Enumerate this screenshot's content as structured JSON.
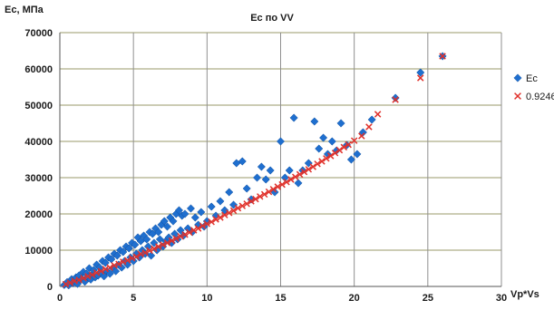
{
  "chart_data": {
    "type": "scatter",
    "title": "Ec по VV",
    "ylabel": "Ec, МПа",
    "xlabel": "Vp*Vs",
    "xlim": [
      0,
      30
    ],
    "ylim": [
      0,
      70000
    ],
    "x_ticks": [
      "0",
      "5",
      "10",
      "15",
      "20",
      "25",
      "30"
    ],
    "y_ticks": [
      "0",
      "10000",
      "20000",
      "30000",
      "40000",
      "50000",
      "60000",
      "70000"
    ],
    "grid": true,
    "legend_position": "right",
    "series": [
      {
        "name": "Ec",
        "marker": "diamond",
        "color": "#1f6fcf",
        "points": [
          [
            0.3,
            400
          ],
          [
            0.5,
            1200
          ],
          [
            0.6,
            300
          ],
          [
            0.8,
            2000
          ],
          [
            0.9,
            900
          ],
          [
            1.0,
            1500
          ],
          [
            1.1,
            2500
          ],
          [
            1.2,
            700
          ],
          [
            1.3,
            3000
          ],
          [
            1.4,
            1800
          ],
          [
            1.5,
            2200
          ],
          [
            1.6,
            4000
          ],
          [
            1.7,
            1300
          ],
          [
            1.8,
            3500
          ],
          [
            1.9,
            2600
          ],
          [
            2.0,
            5000
          ],
          [
            2.1,
            1900
          ],
          [
            2.2,
            3300
          ],
          [
            2.3,
            4500
          ],
          [
            2.4,
            2500
          ],
          [
            2.5,
            6000
          ],
          [
            2.6,
            3000
          ],
          [
            2.7,
            5200
          ],
          [
            2.8,
            3800
          ],
          [
            2.9,
            7000
          ],
          [
            3.0,
            2800
          ],
          [
            3.1,
            6500
          ],
          [
            3.2,
            4200
          ],
          [
            3.3,
            8000
          ],
          [
            3.4,
            3500
          ],
          [
            3.5,
            7500
          ],
          [
            3.6,
            5000
          ],
          [
            3.7,
            9000
          ],
          [
            3.8,
            4200
          ],
          [
            3.9,
            8500
          ],
          [
            4.0,
            6000
          ],
          [
            4.1,
            10000
          ],
          [
            4.2,
            5200
          ],
          [
            4.3,
            9500
          ],
          [
            4.4,
            7000
          ],
          [
            4.5,
            11000
          ],
          [
            4.6,
            6000
          ],
          [
            4.7,
            10500
          ],
          [
            4.8,
            8000
          ],
          [
            4.9,
            12000
          ],
          [
            5.0,
            7000
          ],
          [
            5.1,
            11500
          ],
          [
            5.2,
            9000
          ],
          [
            5.3,
            13500
          ],
          [
            5.4,
            8000
          ],
          [
            5.5,
            12500
          ],
          [
            5.6,
            10000
          ],
          [
            5.7,
            14000
          ],
          [
            5.8,
            9000
          ],
          [
            5.9,
            13000
          ],
          [
            6.0,
            11000
          ],
          [
            6.1,
            15000
          ],
          [
            6.2,
            8500
          ],
          [
            6.3,
            14500
          ],
          [
            6.4,
            12000
          ],
          [
            6.5,
            16000
          ],
          [
            6.6,
            10000
          ],
          [
            6.7,
            15000
          ],
          [
            6.8,
            13000
          ],
          [
            6.9,
            17000
          ],
          [
            7.0,
            11000
          ],
          [
            7.1,
            18000
          ],
          [
            7.2,
            12500
          ],
          [
            7.3,
            16500
          ],
          [
            7.4,
            13500
          ],
          [
            7.5,
            19000
          ],
          [
            7.6,
            12000
          ],
          [
            7.7,
            18000
          ],
          [
            7.8,
            14500
          ],
          [
            7.9,
            20000
          ],
          [
            8.0,
            13000
          ],
          [
            8.1,
            21000
          ],
          [
            8.2,
            15500
          ],
          [
            8.3,
            19500
          ],
          [
            8.4,
            14000
          ],
          [
            8.5,
            20000
          ],
          [
            8.7,
            16000
          ],
          [
            8.9,
            21500
          ],
          [
            9.0,
            15000
          ],
          [
            9.2,
            19000
          ],
          [
            9.4,
            17000
          ],
          [
            9.6,
            20500
          ],
          [
            9.8,
            16500
          ],
          [
            10.0,
            18000
          ],
          [
            10.3,
            22000
          ],
          [
            10.6,
            19500
          ],
          [
            10.9,
            23500
          ],
          [
            11.2,
            21000
          ],
          [
            11.5,
            26000
          ],
          [
            11.8,
            22500
          ],
          [
            12.0,
            34000
          ],
          [
            12.4,
            34500
          ],
          [
            12.7,
            27000
          ],
          [
            13.0,
            24000
          ],
          [
            13.4,
            30000
          ],
          [
            13.7,
            33000
          ],
          [
            14.0,
            29500
          ],
          [
            14.3,
            32000
          ],
          [
            14.6,
            26000
          ],
          [
            15.0,
            40000
          ],
          [
            15.3,
            30000
          ],
          [
            15.6,
            32000
          ],
          [
            15.9,
            46500
          ],
          [
            16.2,
            28500
          ],
          [
            16.5,
            32000
          ],
          [
            16.9,
            34000
          ],
          [
            17.3,
            45500
          ],
          [
            17.6,
            38000
          ],
          [
            17.9,
            41000
          ],
          [
            18.2,
            36500
          ],
          [
            18.5,
            40000
          ],
          [
            18.8,
            37500
          ],
          [
            19.1,
            45000
          ],
          [
            19.5,
            39000
          ],
          [
            19.8,
            35000
          ],
          [
            20.2,
            36500
          ],
          [
            20.6,
            42500
          ],
          [
            21.2,
            46000
          ],
          [
            22.8,
            52000
          ],
          [
            24.5,
            59000
          ],
          [
            26.0,
            63500
          ]
        ]
      },
      {
        "name": "0.9246",
        "marker": "x",
        "color": "#e0302a",
        "points": [
          [
            0.4,
            600
          ],
          [
            0.7,
            1000
          ],
          [
            1.0,
            1500
          ],
          [
            1.3,
            1800
          ],
          [
            1.6,
            2300
          ],
          [
            1.9,
            2800
          ],
          [
            2.2,
            3200
          ],
          [
            2.5,
            3800
          ],
          [
            2.8,
            4200
          ],
          [
            3.1,
            4800
          ],
          [
            3.4,
            5200
          ],
          [
            3.7,
            5800
          ],
          [
            4.0,
            6200
          ],
          [
            4.3,
            6800
          ],
          [
            4.6,
            7200
          ],
          [
            4.9,
            7800
          ],
          [
            5.2,
            8200
          ],
          [
            5.5,
            8900
          ],
          [
            5.8,
            9300
          ],
          [
            6.1,
            9900
          ],
          [
            6.4,
            10400
          ],
          [
            6.7,
            11000
          ],
          [
            7.0,
            11500
          ],
          [
            7.3,
            12000
          ],
          [
            7.6,
            12600
          ],
          [
            7.9,
            13200
          ],
          [
            8.2,
            13800
          ],
          [
            8.5,
            14300
          ],
          [
            8.8,
            14900
          ],
          [
            9.1,
            15500
          ],
          [
            9.4,
            16000
          ],
          [
            9.7,
            16700
          ],
          [
            10.0,
            17300
          ],
          [
            10.3,
            17800
          ],
          [
            10.6,
            18500
          ],
          [
            10.9,
            19000
          ],
          [
            11.2,
            19700
          ],
          [
            11.5,
            20300
          ],
          [
            11.8,
            20900
          ],
          [
            12.1,
            21600
          ],
          [
            12.4,
            22200
          ],
          [
            12.7,
            22800
          ],
          [
            13.0,
            23500
          ],
          [
            13.3,
            24100
          ],
          [
            13.6,
            24800
          ],
          [
            13.9,
            25400
          ],
          [
            14.2,
            26100
          ],
          [
            14.5,
            26800
          ],
          [
            14.8,
            27500
          ],
          [
            15.1,
            28100
          ],
          [
            15.4,
            28800
          ],
          [
            15.7,
            29500
          ],
          [
            16.0,
            30200
          ],
          [
            16.3,
            30900
          ],
          [
            16.6,
            31600
          ],
          [
            16.9,
            32300
          ],
          [
            17.2,
            33000
          ],
          [
            17.5,
            33800
          ],
          [
            17.8,
            34500
          ],
          [
            18.1,
            35300
          ],
          [
            18.4,
            36000
          ],
          [
            18.7,
            36800
          ],
          [
            19.0,
            37600
          ],
          [
            19.3,
            38400
          ],
          [
            19.6,
            39100
          ],
          [
            20.0,
            40200
          ],
          [
            20.5,
            41500
          ],
          [
            21.0,
            44000
          ],
          [
            21.6,
            47500
          ],
          [
            22.8,
            51500
          ],
          [
            24.5,
            57500
          ],
          [
            26.0,
            63500
          ]
        ]
      }
    ]
  }
}
